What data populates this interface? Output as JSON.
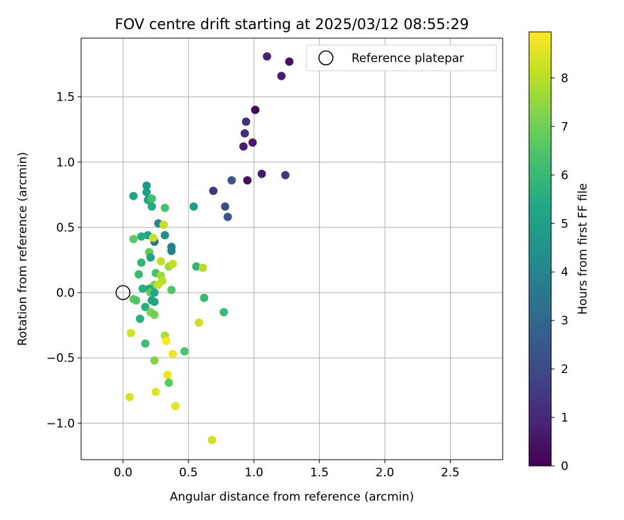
{
  "chart_data": {
    "type": "scatter",
    "title": "FOV centre drift starting at 2025/03/12 08:55:29",
    "xlabel": "Angular distance from reference (arcmin)",
    "ylabel": "Rotation from reference (arcmin)",
    "xlim": [
      -0.32,
      2.9
    ],
    "ylim": [
      -1.28,
      1.95
    ],
    "xticks": [
      "0.0",
      "0.5",
      "1.0",
      "1.5",
      "2.0",
      "2.5"
    ],
    "yticks": [
      "−1.0",
      "−0.5",
      "0.0",
      "0.5",
      "1.0",
      "1.5"
    ],
    "grid": true,
    "legend": {
      "placement": "top-right",
      "entries": [
        "Reference platepar"
      ]
    },
    "reference_point": {
      "x": 0.0,
      "y": 0.0
    },
    "colorbar": {
      "label": "Hours from first FF file",
      "colormap": "viridis",
      "range": [
        0,
        8.95
      ],
      "ticks": [
        "0",
        "1",
        "2",
        "3",
        "4",
        "5",
        "6",
        "7",
        "8"
      ]
    },
    "points": [
      [
        1.1,
        1.81,
        0.9
      ],
      [
        1.27,
        1.77,
        0.4
      ],
      [
        1.21,
        1.66,
        0.7
      ],
      [
        1.01,
        1.4,
        0.1
      ],
      [
        0.94,
        1.31,
        1.2
      ],
      [
        0.93,
        1.22,
        1.1
      ],
      [
        0.92,
        1.12,
        0.8
      ],
      [
        0.99,
        1.15,
        0.6
      ],
      [
        1.06,
        0.91,
        0.7
      ],
      [
        1.24,
        0.9,
        1.4
      ],
      [
        0.95,
        0.86,
        0.3
      ],
      [
        0.83,
        0.86,
        2.3
      ],
      [
        0.69,
        0.78,
        1.3
      ],
      [
        0.78,
        0.66,
        2.1
      ],
      [
        0.8,
        0.58,
        2.3
      ],
      [
        0.54,
        0.66,
        5.0
      ],
      [
        0.08,
        0.74,
        5.2
      ],
      [
        0.18,
        0.82,
        4.7
      ],
      [
        0.18,
        0.77,
        5.0
      ],
      [
        0.19,
        0.71,
        5.3
      ],
      [
        0.22,
        0.72,
        6.2
      ],
      [
        0.22,
        0.66,
        5.4
      ],
      [
        0.32,
        0.65,
        6.3
      ],
      [
        0.27,
        0.53,
        4.0
      ],
      [
        0.31,
        0.52,
        8.2
      ],
      [
        0.19,
        0.44,
        5.2
      ],
      [
        0.14,
        0.43,
        5.5
      ],
      [
        0.08,
        0.41,
        6.7
      ],
      [
        0.24,
        0.39,
        3.5
      ],
      [
        0.32,
        0.44,
        4.2
      ],
      [
        0.23,
        0.42,
        8.2
      ],
      [
        0.37,
        0.35,
        3.7
      ],
      [
        0.37,
        0.32,
        3.9
      ],
      [
        0.2,
        0.31,
        6.8
      ],
      [
        0.21,
        0.27,
        5.1
      ],
      [
        0.14,
        0.23,
        5.8
      ],
      [
        0.29,
        0.24,
        8.1
      ],
      [
        0.35,
        0.2,
        7.7
      ],
      [
        0.38,
        0.22,
        8.1
      ],
      [
        0.56,
        0.2,
        5.8
      ],
      [
        0.61,
        0.19,
        8.0
      ],
      [
        0.12,
        0.14,
        6.0
      ],
      [
        0.25,
        0.15,
        6.4
      ],
      [
        0.29,
        0.13,
        7.6
      ],
      [
        0.3,
        0.09,
        8.0
      ],
      [
        0.24,
        0.06,
        7.1
      ],
      [
        0.27,
        0.06,
        8.2
      ],
      [
        0.15,
        0.03,
        5.6
      ],
      [
        0.2,
        0.03,
        5.4
      ],
      [
        0.21,
        0.0,
        6.8
      ],
      [
        0.24,
        0.0,
        5.3
      ],
      [
        0.37,
        0.02,
        6.5
      ],
      [
        0.08,
        -0.05,
        6.7
      ],
      [
        0.1,
        -0.06,
        6.4
      ],
      [
        0.22,
        -0.06,
        5.0
      ],
      [
        0.24,
        -0.07,
        5.3
      ],
      [
        0.17,
        -0.11,
        5.6
      ],
      [
        0.21,
        -0.15,
        7.2
      ],
      [
        0.24,
        -0.17,
        7.0
      ],
      [
        0.62,
        -0.04,
        6.0
      ],
      [
        0.77,
        -0.15,
        6.0
      ],
      [
        0.13,
        -0.2,
        5.7
      ],
      [
        0.58,
        -0.23,
        8.3
      ],
      [
        0.06,
        -0.31,
        8.3
      ],
      [
        0.32,
        -0.33,
        7.8
      ],
      [
        0.33,
        -0.37,
        8.9
      ],
      [
        0.17,
        -0.39,
        6.2
      ],
      [
        0.47,
        -0.45,
        6.4
      ],
      [
        0.24,
        -0.52,
        7.3
      ],
      [
        0.34,
        -0.63,
        8.7
      ],
      [
        0.35,
        -0.69,
        6.7
      ],
      [
        0.25,
        -0.76,
        8.5
      ],
      [
        0.05,
        -0.8,
        8.4
      ],
      [
        0.4,
        -0.87,
        8.6
      ],
      [
        0.38,
        -0.47,
        8.7
      ],
      [
        0.68,
        -1.13,
        8.3
      ]
    ]
  }
}
